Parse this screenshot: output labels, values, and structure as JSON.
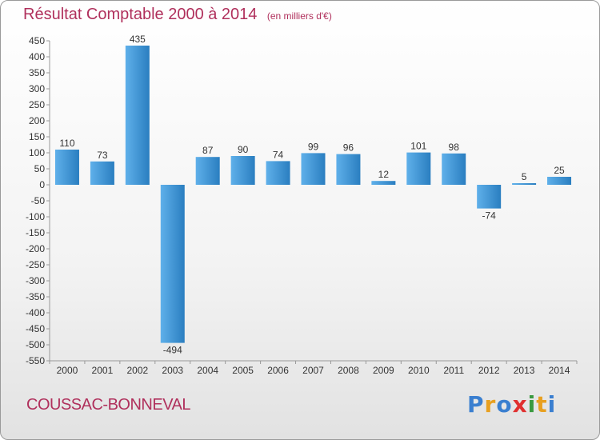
{
  "header": {
    "title": "Résultat Comptable 2000 à 2014",
    "subtitle": "(en milliers d'€)"
  },
  "footer": {
    "commune": "COUSSAC-BONNEVAL",
    "logo_text": "Proxiti",
    "logo_colors": [
      "#3a7fd0",
      "#e8a020",
      "#3a7fd0",
      "#e03030",
      "#3a9a40",
      "#e8a020",
      "#3a7fd0"
    ]
  },
  "colors": {
    "bar_light": "#5fb0ea",
    "bar_dark": "#2a7ec0",
    "text": "#333333",
    "title": "#b0305c",
    "grid": "#c8c8c8"
  },
  "chart_data": {
    "type": "bar",
    "title": "Résultat Comptable 2000 à 2014",
    "subtitle": "(en milliers d'€)",
    "xlabel": "",
    "ylabel": "",
    "categories": [
      "2000",
      "2001",
      "2002",
      "2003",
      "2004",
      "2005",
      "2006",
      "2007",
      "2008",
      "2009",
      "2010",
      "2011",
      "2012",
      "2013",
      "2014"
    ],
    "values": [
      110,
      73,
      435,
      -494,
      87,
      90,
      74,
      99,
      96,
      12,
      101,
      98,
      -74,
      5,
      25
    ],
    "ylim": [
      -550,
      450
    ],
    "yticks": [
      450,
      400,
      350,
      300,
      250,
      200,
      150,
      100,
      50,
      0,
      -50,
      -100,
      -150,
      -200,
      -250,
      -300,
      -350,
      -400,
      -450,
      -500,
      -550
    ],
    "grid": false,
    "legend": "none"
  }
}
